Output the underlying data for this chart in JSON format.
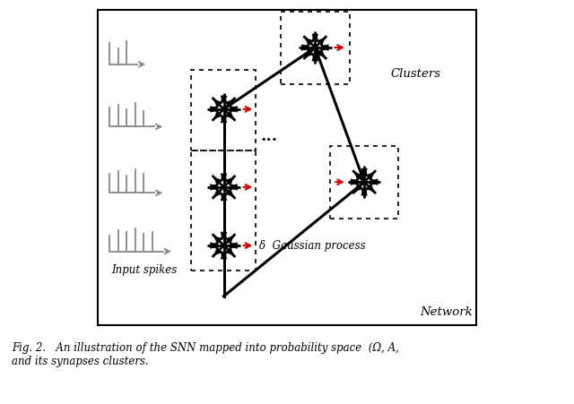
{
  "fig_width": 6.4,
  "fig_height": 4.51,
  "dpi": 100,
  "bg_color": "#ffffff",
  "spike_color": "#888888",
  "black": "#000000",
  "red": "#cc0000",
  "caption": "Fig. 2.   An illustration of the SNN mapped into probability space  (Ω, A,\nand its synapses clusters.",
  "label_clusters": "Clusters",
  "label_network": "Network",
  "label_input": "Input spikes",
  "label_gaussian": "δ  Gaussian process",
  "label_dots": "..."
}
